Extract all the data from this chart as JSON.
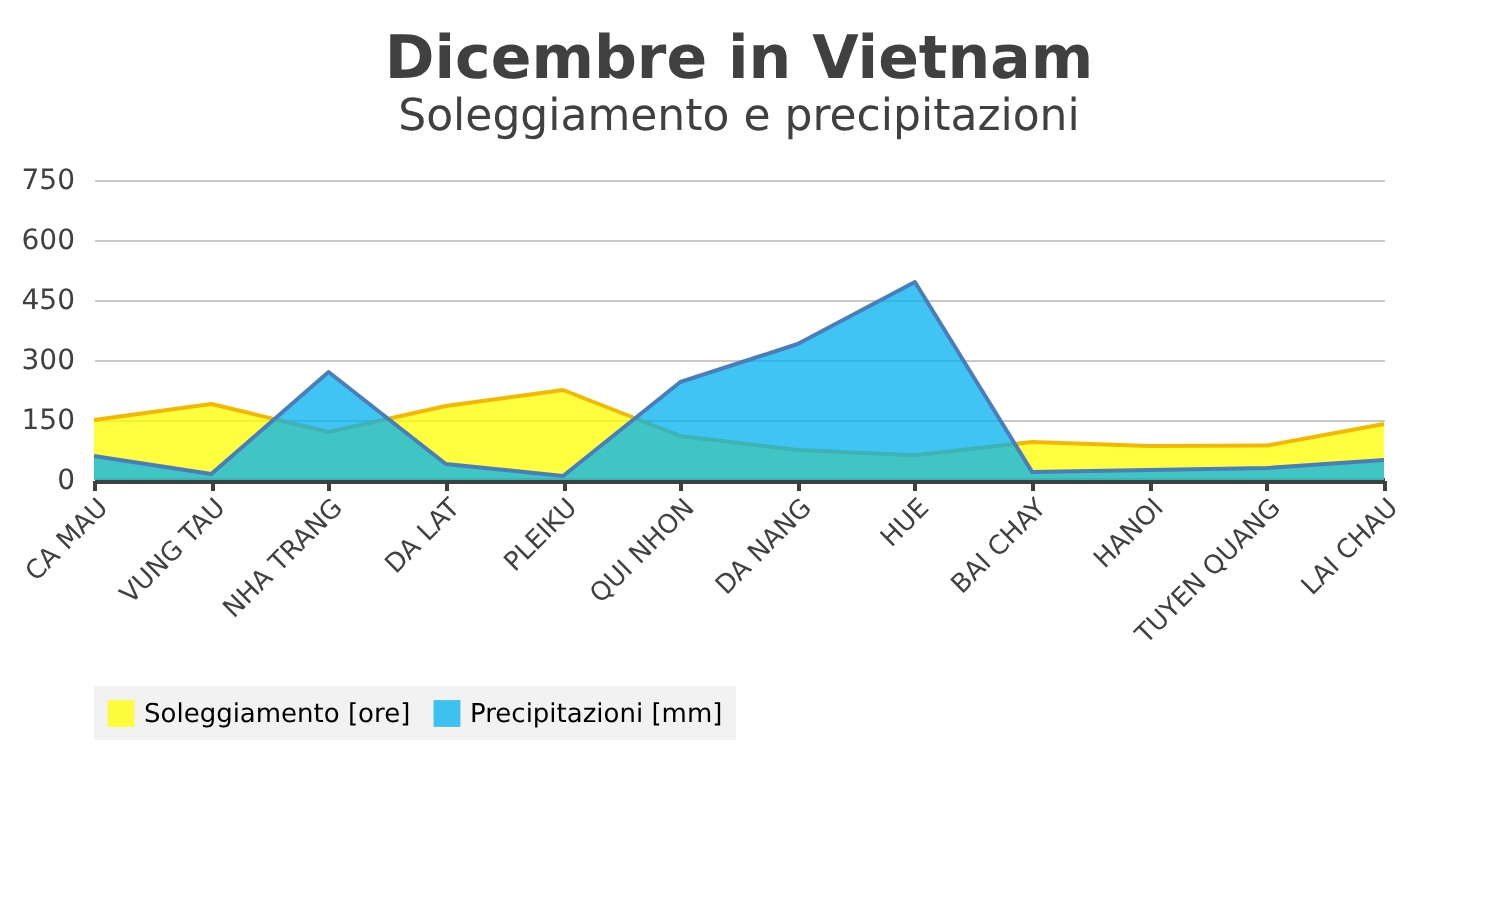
{
  "chart_data": {
    "type": "area",
    "title": "Dicembre in Vietnam",
    "subtitle": "Soleggiamento e precipitazioni",
    "categories": [
      "CA MAU",
      "VUNG TAU",
      "NHA TRANG",
      "DA LAT",
      "PLEIKU",
      "QUI NHON",
      "DA NANG",
      "HUE",
      "BAI CHAY",
      "HANOI",
      "TUYEN QUANG",
      "LAI CHAU"
    ],
    "series": [
      {
        "name": "Soleggiamento [ore]",
        "color": "#ffff00",
        "values": [
          150,
          190,
          120,
          185,
          225,
          110,
          75,
          62,
          95,
          85,
          86,
          140
        ]
      },
      {
        "name": "Precipitazioni [mm]",
        "color": "#00b0f0",
        "values": [
          60,
          15,
          270,
          40,
          10,
          245,
          340,
          495,
          20,
          25,
          30,
          50
        ]
      }
    ],
    "ylim": [
      0,
      750
    ],
    "yticks": [
      0,
      150,
      300,
      450,
      600,
      750
    ],
    "grid": "y",
    "legend": "bottom"
  }
}
